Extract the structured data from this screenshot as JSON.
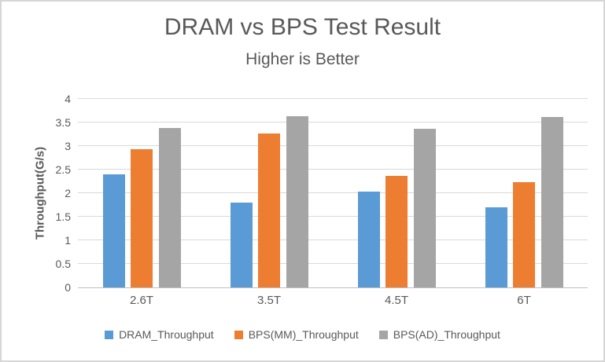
{
  "chart_data": {
    "type": "bar",
    "title": "DRAM vs BPS Test Result",
    "subtitle": "Higher is Better",
    "ylabel": "Throughput(G/s)",
    "xlabel": "",
    "categories": [
      "2.6T",
      "3.5T",
      "4.5T",
      "6T"
    ],
    "series": [
      {
        "name": "DRAM_Throughput",
        "color": "#5B9BD5",
        "values": [
          2.4,
          1.8,
          2.04,
          1.7
        ]
      },
      {
        "name": "BPS(MM)_Throughput",
        "color": "#ED7D31",
        "values": [
          2.93,
          3.27,
          2.37,
          2.24
        ]
      },
      {
        "name": "BPS(AD)_Throughput",
        "color": "#A5A5A5",
        "values": [
          3.39,
          3.64,
          3.37,
          3.62
        ]
      }
    ],
    "ylim": [
      0,
      4
    ],
    "ytick_step": 0.5,
    "yticks": [
      {
        "label": "0",
        "value": 0
      },
      {
        "label": "0.5",
        "value": 0.5
      },
      {
        "label": "1",
        "value": 1
      },
      {
        "label": "1.5",
        "value": 1.5
      },
      {
        "label": "2",
        "value": 2
      },
      {
        "label": "2.5",
        "value": 2.5
      },
      {
        "label": "3",
        "value": 3
      },
      {
        "label": "3.5",
        "value": 3.5
      },
      {
        "label": "4",
        "value": 4
      }
    ],
    "grid": true,
    "legend_position": "bottom",
    "colors": {
      "text": "#595959",
      "gridline": "#D9D9D9",
      "axis_line": "#BFBFBF",
      "background": "#FFFFFF",
      "border": "#D6D6D6"
    }
  }
}
